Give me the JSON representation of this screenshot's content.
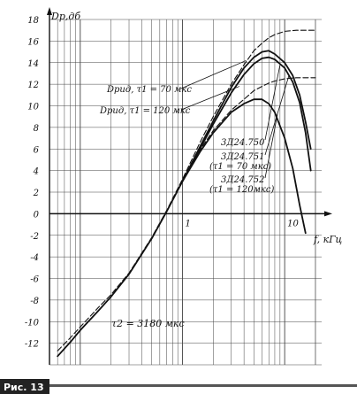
{
  "chart_data": {
    "type": "line",
    "xscale": "log",
    "ylabel": "Dр,дб",
    "xlabel": "f, кГц",
    "xlim": [
      0.05,
      23
    ],
    "ylim": [
      -14,
      18
    ],
    "yticks": [
      -12,
      -10,
      -8,
      -6,
      -4,
      -2,
      0,
      2,
      4,
      6,
      8,
      10,
      12,
      14,
      16,
      18
    ],
    "ytick_labels": [
      "-12",
      "-10",
      "-8",
      "-6",
      "-4",
      "-2",
      "0",
      "2",
      "4",
      "6",
      "8",
      "10",
      "12",
      "14",
      "16",
      "18"
    ],
    "xtick_labels": [
      {
        "x": 1,
        "label": "1"
      },
      {
        "x": 10,
        "label": "10"
      }
    ],
    "grid": true,
    "series": [
      {
        "name": "Dрид, τ1 = 70 мкс",
        "style": "dashed",
        "x": [
          0.06,
          0.08,
          0.1,
          0.15,
          0.2,
          0.3,
          0.5,
          0.7,
          1,
          1.5,
          2,
          3,
          4,
          5,
          6,
          7,
          8,
          10,
          13,
          16,
          20
        ],
        "y": [
          -12.7,
          -11.5,
          -10.5,
          -8.7,
          -7.5,
          -5.5,
          -2.2,
          0.3,
          3.2,
          6.7,
          9,
          12,
          13.8,
          15.1,
          15.8,
          16.3,
          16.6,
          16.9,
          17,
          17,
          17
        ]
      },
      {
        "name": "Dрид, τ1 = 120 мкс",
        "style": "dashed",
        "x": [
          1,
          1.5,
          2,
          3,
          4,
          5,
          6,
          7,
          8,
          10,
          13,
          16,
          20
        ],
        "y": [
          3.1,
          6,
          7.7,
          9.6,
          10.6,
          11.4,
          11.8,
          12.1,
          12.3,
          12.5,
          12.6,
          12.6,
          12.6
        ]
      },
      {
        "name": "3Д24.750",
        "style": "solid",
        "x": [
          0.06,
          0.08,
          0.1,
          0.15,
          0.2,
          0.3,
          0.5,
          0.7,
          1,
          1.5,
          2,
          3,
          4,
          5,
          6,
          7,
          8,
          10,
          12,
          14,
          16,
          18
        ],
        "y": [
          -13.2,
          -11.9,
          -10.8,
          -9,
          -7.7,
          -5.6,
          -2.3,
          0.2,
          3,
          6.3,
          8.6,
          11.7,
          13.5,
          14.5,
          15,
          15.1,
          14.8,
          14,
          12.8,
          11,
          8.5,
          6
        ]
      },
      {
        "name": "3Д24.751 (τ1 = 70 мкс)",
        "style": "solid",
        "x": [
          1,
          1.5,
          2,
          3,
          4,
          5,
          6,
          7,
          8,
          10,
          12,
          14,
          16,
          18
        ],
        "y": [
          3,
          6.1,
          8.3,
          11.2,
          12.9,
          13.9,
          14.4,
          14.5,
          14.3,
          13.5,
          12.2,
          10.3,
          7.5,
          4
        ]
      },
      {
        "name": "3Д24.752 (τ1 = 120 мкс)",
        "style": "solid",
        "x": [
          1,
          1.5,
          2,
          3,
          4,
          5,
          6,
          7,
          8,
          10,
          12,
          14,
          16
        ],
        "y": [
          3,
          5.8,
          7.5,
          9.4,
          10.2,
          10.6,
          10.6,
          10.2,
          9.4,
          7,
          4.2,
          0.8,
          -1.8
        ]
      }
    ],
    "annotations": [
      {
        "id": "lbl_d70",
        "text": "Dрид, τ1 = 70 мкс"
      },
      {
        "id": "lbl_d120",
        "text": "Dрид, τ1 = 120 мкс"
      },
      {
        "id": "lbl_750",
        "text": "3Д24.750"
      },
      {
        "id": "lbl_751a",
        "text": "3Д24.751"
      },
      {
        "id": "lbl_751b",
        "text": "(τ1 = 70 мкс)"
      },
      {
        "id": "lbl_752a",
        "text": "3Д24.752"
      },
      {
        "id": "lbl_752b",
        "text": "(τ1 = 120мкс)"
      },
      {
        "id": "lbl_t2",
        "text": "τ2 = 3180 мкс"
      }
    ]
  },
  "figure_label": "Рис. 13"
}
